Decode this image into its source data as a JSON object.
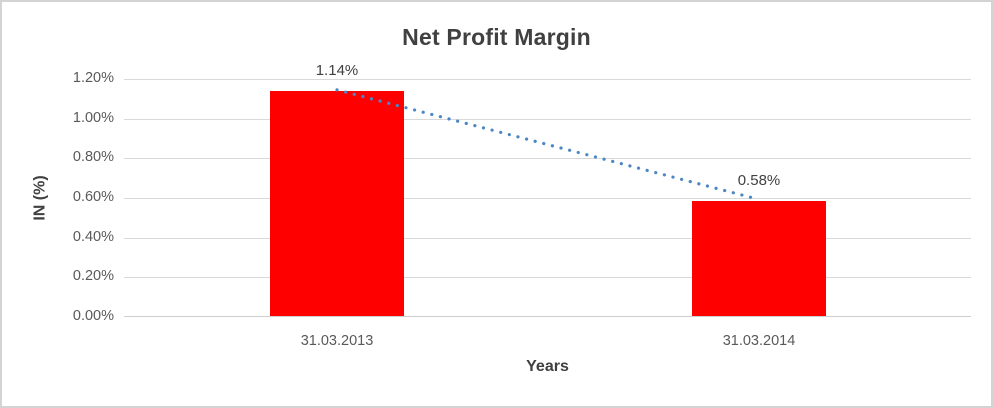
{
  "chart_data": {
    "type": "bar",
    "title": "Net Profit Margin",
    "xlabel": "Years",
    "ylabel": "IN (%)",
    "categories": [
      "31.03.2013",
      "31.03.2014"
    ],
    "values": [
      1.14,
      0.58
    ],
    "data_labels": [
      "1.14%",
      "0.58%"
    ],
    "ylim": [
      0,
      1.2
    ],
    "ytick_labels": [
      "1.20%",
      "1.00%",
      "0.80%",
      "0.60%",
      "0.40%",
      "0.20%",
      "0.00%"
    ],
    "grid": true,
    "legend": false,
    "bar_color": "#FF0000",
    "trendline": {
      "type": "linear",
      "style": "dotted",
      "color": "#4C87C5"
    }
  },
  "colors": {
    "title_text": "#404040",
    "axis_text": "#595959",
    "gridline": "#D9D9D9",
    "frame_border": "#D3D3D3",
    "background": "#FFFFFF"
  }
}
